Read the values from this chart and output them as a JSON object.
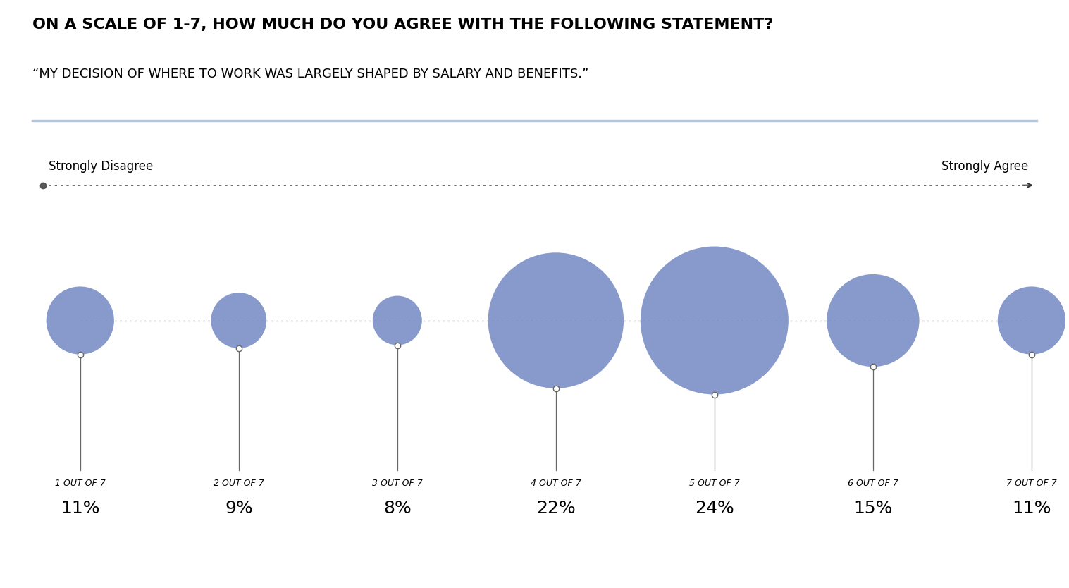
{
  "title_line1": "ON A SCALE OF 1-7, HOW MUCH DO YOU AGREE WITH THE FOLLOWING STATEMENT?",
  "title_line2": "“MY DECISION OF WHERE TO WORK WAS LARGELY SHAPED BY SALARY AND BENEFITS.”",
  "labels": [
    "1 OUT OF 7",
    "2 OUT OF 7",
    "3 OUT OF 7",
    "4 OUT OF 7",
    "5 OUT OF 7",
    "6 OUT OF 7",
    "7 OUT OF 7"
  ],
  "percentages": [
    11,
    9,
    8,
    22,
    24,
    15,
    11
  ],
  "pct_labels": [
    "11%",
    "9%",
    "8%",
    "22%",
    "24%",
    "15%",
    "11%"
  ],
  "bubble_color": "#7b8fc7",
  "strongly_disagree": "Strongly Disagree",
  "strongly_agree": "Strongly Agree",
  "separator_color": "#b8c8d8",
  "title1_fontsize": 16,
  "title2_fontsize": 13,
  "label_fontsize": 9,
  "pct_fontsize": 18,
  "axis_label_fontsize": 12,
  "background_color": "#ffffff"
}
